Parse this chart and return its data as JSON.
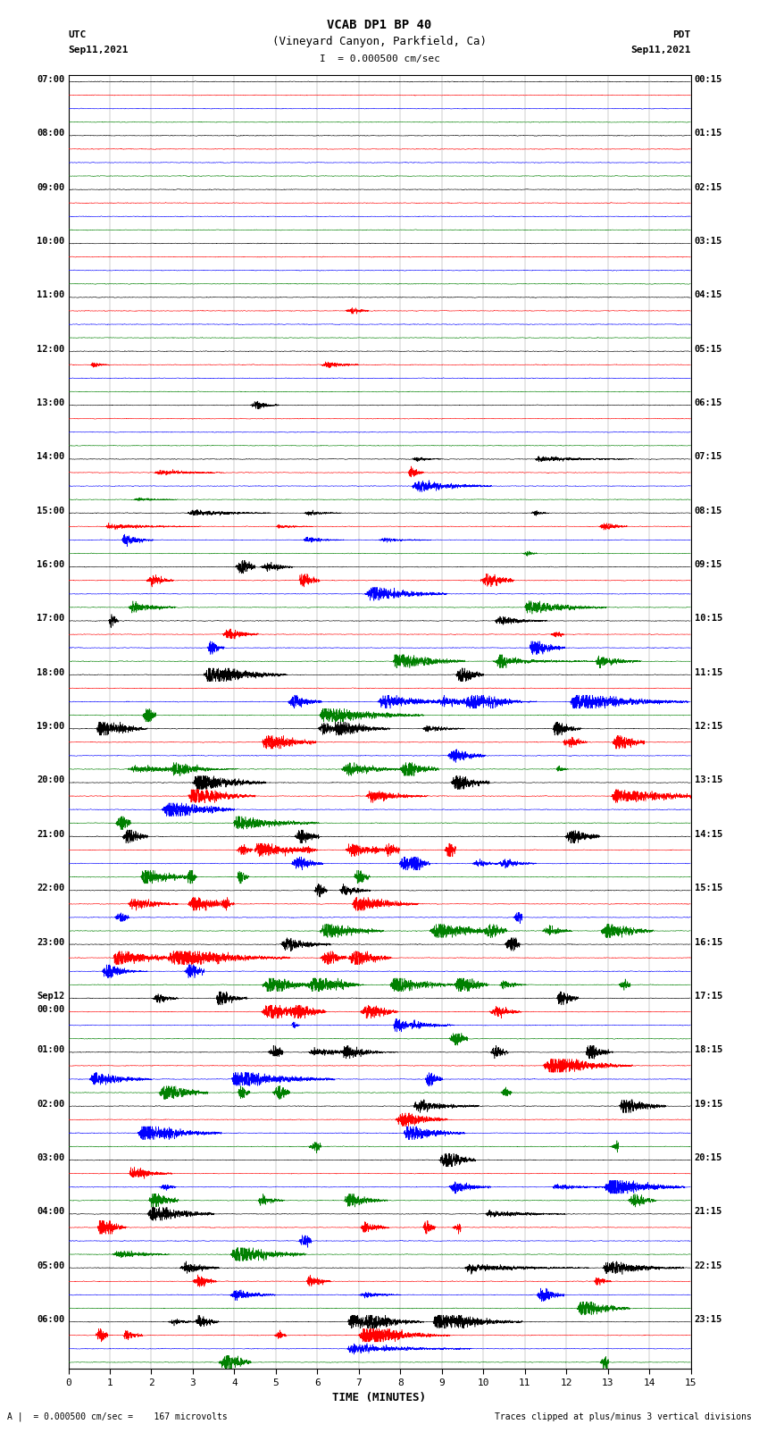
{
  "title_line1": "VCAB DP1 BP 40",
  "title_line2": "(Vineyard Canyon, Parkfield, Ca)",
  "scale_text": "I  = 0.000500 cm/sec",
  "utc_label": "UTC",
  "pdt_label": "PDT",
  "date_left": "Sep11,2021",
  "date_right": "Sep11,2021",
  "xlabel": "TIME (MINUTES)",
  "bottom_left": "A |  = 0.000500 cm/sec =    167 microvolts",
  "bottom_right": "Traces clipped at plus/minus 3 vertical divisions",
  "colors": [
    "black",
    "red",
    "blue",
    "green"
  ],
  "bg_color": "#ffffff",
  "n_rows": 96,
  "left_times_utc": [
    "07:00",
    "",
    "",
    "",
    "08:00",
    "",
    "",
    "",
    "09:00",
    "",
    "",
    "",
    "10:00",
    "",
    "",
    "",
    "11:00",
    "",
    "",
    "",
    "12:00",
    "",
    "",
    "",
    "13:00",
    "",
    "",
    "",
    "14:00",
    "",
    "",
    "",
    "15:00",
    "",
    "",
    "",
    "16:00",
    "",
    "",
    "",
    "17:00",
    "",
    "",
    "",
    "18:00",
    "",
    "",
    "",
    "19:00",
    "",
    "",
    "",
    "20:00",
    "",
    "",
    "",
    "21:00",
    "",
    "",
    "",
    "22:00",
    "",
    "",
    "",
    "23:00",
    "",
    "",
    "",
    "Sep12",
    "00:00",
    "",
    "",
    "01:00",
    "",
    "",
    "",
    "02:00",
    "",
    "",
    "",
    "03:00",
    "",
    "",
    "",
    "04:00",
    "",
    "",
    "",
    "05:00",
    "",
    "",
    "",
    "06:00",
    "",
    "",
    ""
  ],
  "right_times_pdt": [
    "00:15",
    "",
    "",
    "",
    "01:15",
    "",
    "",
    "",
    "02:15",
    "",
    "",
    "",
    "03:15",
    "",
    "",
    "",
    "04:15",
    "",
    "",
    "",
    "05:15",
    "",
    "",
    "",
    "06:15",
    "",
    "",
    "",
    "07:15",
    "",
    "",
    "",
    "08:15",
    "",
    "",
    "",
    "09:15",
    "",
    "",
    "",
    "10:15",
    "",
    "",
    "",
    "11:15",
    "",
    "",
    "",
    "12:15",
    "",
    "",
    "",
    "13:15",
    "",
    "",
    "",
    "14:15",
    "",
    "",
    "",
    "15:15",
    "",
    "",
    "",
    "16:15",
    "",
    "",
    "",
    "17:15",
    "",
    "",
    "",
    "18:15",
    "",
    "",
    "",
    "19:15",
    "",
    "",
    "",
    "20:15",
    "",
    "",
    "",
    "21:15",
    "",
    "",
    "",
    "22:15",
    "",
    "",
    "",
    "23:15",
    "",
    "",
    ""
  ],
  "xlim": [
    0,
    15
  ],
  "xticks": [
    0,
    1,
    2,
    3,
    4,
    5,
    6,
    7,
    8,
    9,
    10,
    11,
    12,
    13,
    14,
    15
  ]
}
